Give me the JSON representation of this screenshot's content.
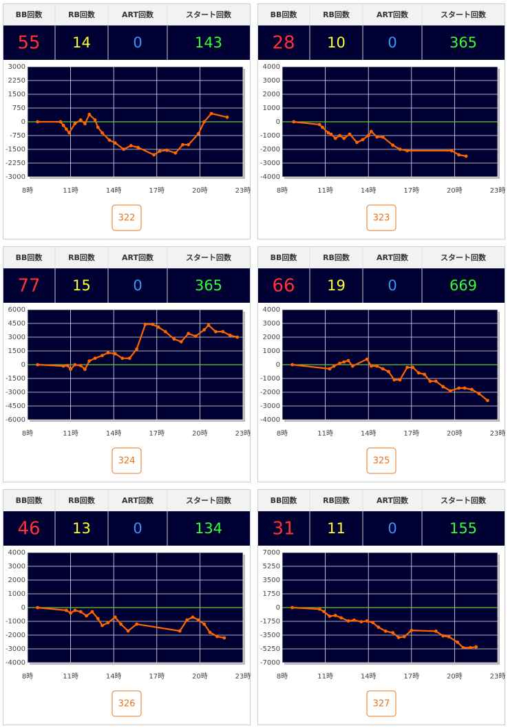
{
  "stat_headers": [
    "BB回数",
    "RB回数",
    "ART回数",
    "スタート回数"
  ],
  "panels": [
    {
      "stats": [
        55,
        14,
        0,
        143
      ],
      "button": "322"
    },
    {
      "stats": [
        28,
        10,
        0,
        365
      ],
      "button": "323"
    },
    {
      "stats": [
        77,
        15,
        0,
        365
      ],
      "button": "324"
    },
    {
      "stats": [
        66,
        19,
        0,
        669
      ],
      "button": "325"
    },
    {
      "stats": [
        46,
        13,
        0,
        134
      ],
      "button": "326"
    },
    {
      "stats": [
        31,
        11,
        0,
        155
      ],
      "button": "327"
    }
  ],
  "chart_data": [
    {
      "type": "line",
      "x": [
        8.7,
        10.3,
        10.5,
        10.7,
        10.9,
        11.3,
        11.7,
        12.0,
        12.3,
        12.7,
        12.9,
        13.2,
        13.7,
        14.1,
        14.7,
        15.2,
        15.7,
        16.8,
        17.2,
        17.7,
        18.3,
        18.8,
        19.2,
        19.9,
        20.3,
        20.8,
        21.9
      ],
      "series": [
        {
          "color": "#ff6600",
          "values": [
            0,
            0,
            -200,
            -400,
            -600,
            -100,
            100,
            -100,
            400,
            100,
            -300,
            -600,
            -1000,
            -1150,
            -1500,
            -1300,
            -1400,
            -1800,
            -1600,
            -1550,
            -1700,
            -1250,
            -1250,
            -650,
            0,
            450,
            250
          ]
        }
      ],
      "xlim": [
        8,
        23
      ],
      "xticks": [
        {
          "value": 8,
          "label": "8時"
        },
        {
          "value": 11,
          "label": "11時"
        },
        {
          "value": 14,
          "label": "14時"
        },
        {
          "value": 17,
          "label": "17時"
        },
        {
          "value": 20,
          "label": "20時"
        },
        {
          "value": 23,
          "label": "23時"
        }
      ],
      "ylim": [
        -3000,
        3000
      ],
      "yticks": [
        3000,
        2250,
        1500,
        750,
        0,
        -750,
        -1500,
        -2250,
        -3000
      ],
      "grid": true
    },
    {
      "type": "line",
      "x": [
        8.8,
        10.6,
        10.8,
        11.2,
        11.4,
        11.7,
        12.0,
        12.3,
        12.7,
        13.2,
        13.6,
        14.0,
        14.2,
        14.6,
        15.0,
        15.7,
        16.2,
        16.7,
        19.8,
        20.3,
        20.8
      ],
      "series": [
        {
          "color": "#ff6600",
          "values": [
            0,
            -200,
            -400,
            -800,
            -900,
            -1200,
            -1000,
            -1200,
            -900,
            -1500,
            -1300,
            -1000,
            -700,
            -1100,
            -1100,
            -1700,
            -2000,
            -2100,
            -2100,
            -2400,
            -2500
          ]
        }
      ],
      "xlim": [
        8,
        23
      ],
      "xticks": [
        {
          "value": 8,
          "label": "8時"
        },
        {
          "value": 11,
          "label": "11時"
        },
        {
          "value": 14,
          "label": "14時"
        },
        {
          "value": 17,
          "label": "17時"
        },
        {
          "value": 20,
          "label": "20時"
        },
        {
          "value": 23,
          "label": "23時"
        }
      ],
      "ylim": [
        -4000,
        4000
      ],
      "yticks": [
        4000,
        3000,
        2000,
        1000,
        0,
        -1000,
        -2000,
        -3000,
        -4000
      ],
      "grid": true
    },
    {
      "type": "line",
      "x": [
        8.7,
        10.5,
        10.8,
        11.0,
        11.3,
        11.7,
        12.0,
        12.3,
        12.7,
        13.2,
        13.6,
        14.1,
        14.6,
        15.1,
        15.6,
        16.2,
        16.7,
        17.1,
        17.6,
        18.2,
        18.7,
        19.2,
        19.7,
        20.3,
        20.6,
        21.1,
        21.6,
        22.1,
        22.6
      ],
      "series": [
        {
          "color": "#ff6600",
          "values": [
            0,
            -150,
            -100,
            -500,
            0,
            -100,
            -500,
            400,
            700,
            1000,
            1300,
            1200,
            700,
            700,
            1700,
            4400,
            4400,
            4100,
            3600,
            2800,
            2500,
            3400,
            3100,
            3800,
            4300,
            3600,
            3600,
            3200,
            3000
          ]
        }
      ],
      "xlim": [
        8,
        23
      ],
      "xticks": [
        {
          "value": 8,
          "label": "8時"
        },
        {
          "value": 11,
          "label": "11時"
        },
        {
          "value": 14,
          "label": "14時"
        },
        {
          "value": 17,
          "label": "17時"
        },
        {
          "value": 20,
          "label": "20時"
        },
        {
          "value": 23,
          "label": "23時"
        }
      ],
      "ylim": [
        -6000,
        6000
      ],
      "yticks": [
        6000,
        4500,
        3000,
        1500,
        0,
        -1500,
        -3000,
        -4500,
        -6000
      ],
      "grid": true
    },
    {
      "type": "line",
      "x": [
        8.7,
        11.3,
        11.6,
        12.0,
        12.3,
        12.6,
        12.9,
        13.9,
        14.2,
        14.6,
        15.0,
        15.4,
        15.8,
        16.2,
        16.7,
        17.1,
        17.5,
        17.9,
        18.3,
        18.7,
        19.2,
        19.7,
        20.3,
        20.7,
        21.2,
        21.7,
        22.3
      ],
      "series": [
        {
          "color": "#ff6600",
          "values": [
            0,
            -300,
            -100,
            100,
            200,
            300,
            -100,
            400,
            -100,
            -100,
            -300,
            -500,
            -1100,
            -1100,
            -200,
            -200,
            -600,
            -700,
            -1200,
            -1200,
            -1600,
            -1900,
            -1700,
            -1700,
            -1800,
            -2100,
            -2600
          ]
        }
      ],
      "xlim": [
        8,
        23
      ],
      "xticks": [
        {
          "value": 8,
          "label": "8時"
        },
        {
          "value": 11,
          "label": "11時"
        },
        {
          "value": 14,
          "label": "14時"
        },
        {
          "value": 17,
          "label": "17時"
        },
        {
          "value": 20,
          "label": "20時"
        },
        {
          "value": 23,
          "label": "23時"
        }
      ],
      "ylim": [
        -4000,
        4000
      ],
      "yticks": [
        4000,
        3000,
        2000,
        1000,
        0,
        -1000,
        -2000,
        -3000,
        -4000
      ],
      "grid": true
    },
    {
      "type": "line",
      "x": [
        8.7,
        10.7,
        11.0,
        11.3,
        11.7,
        12.1,
        12.5,
        12.9,
        13.2,
        13.6,
        14.1,
        14.5,
        15.0,
        15.6,
        18.6,
        19.1,
        19.5,
        19.9,
        20.3,
        20.7,
        21.2,
        21.7
      ],
      "series": [
        {
          "color": "#ff6600",
          "values": [
            0,
            -200,
            -400,
            -200,
            -300,
            -600,
            -300,
            -800,
            -1300,
            -1100,
            -700,
            -1200,
            -1700,
            -1200,
            -1700,
            -900,
            -700,
            -900,
            -1200,
            -1800,
            -2100,
            -2200
          ]
        }
      ],
      "xlim": [
        8,
        23
      ],
      "xticks": [
        {
          "value": 8,
          "label": "8時"
        },
        {
          "value": 11,
          "label": "11時"
        },
        {
          "value": 14,
          "label": "14時"
        },
        {
          "value": 17,
          "label": "17時"
        },
        {
          "value": 20,
          "label": "20時"
        },
        {
          "value": 23,
          "label": "23時"
        }
      ],
      "ylim": [
        -4000,
        4000
      ],
      "yticks": [
        4000,
        3000,
        2000,
        1000,
        0,
        -1000,
        -2000,
        -3000,
        -4000
      ],
      "grid": true
    },
    {
      "type": "line",
      "x": [
        8.7,
        10.6,
        10.9,
        11.3,
        11.7,
        12.1,
        12.6,
        13.0,
        13.5,
        13.9,
        14.3,
        14.7,
        15.2,
        15.7,
        16.1,
        16.5,
        17.0,
        18.7,
        19.2,
        19.6,
        20.2,
        20.6,
        21.1,
        21.5
      ],
      "series": [
        {
          "color": "#ff6600",
          "values": [
            0,
            -200,
            -500,
            -1100,
            -1000,
            -1300,
            -1700,
            -1600,
            -1800,
            -1700,
            -1900,
            -2500,
            -3000,
            -3200,
            -3800,
            -3700,
            -2900,
            -3000,
            -3600,
            -3700,
            -4400,
            -5100,
            -5100,
            -5000
          ]
        }
      ],
      "xlim": [
        8,
        23
      ],
      "xticks": [
        {
          "value": 8,
          "label": "8時"
        },
        {
          "value": 11,
          "label": "11時"
        },
        {
          "value": 14,
          "label": "14時"
        },
        {
          "value": 17,
          "label": "17時"
        },
        {
          "value": 20,
          "label": "20時"
        },
        {
          "value": 23,
          "label": "23時"
        }
      ],
      "ylim": [
        -7000,
        7000
      ],
      "yticks": [
        7000,
        5250,
        3500,
        1750,
        0,
        -1750,
        -3500,
        -5250,
        -7000
      ],
      "grid": true
    }
  ]
}
